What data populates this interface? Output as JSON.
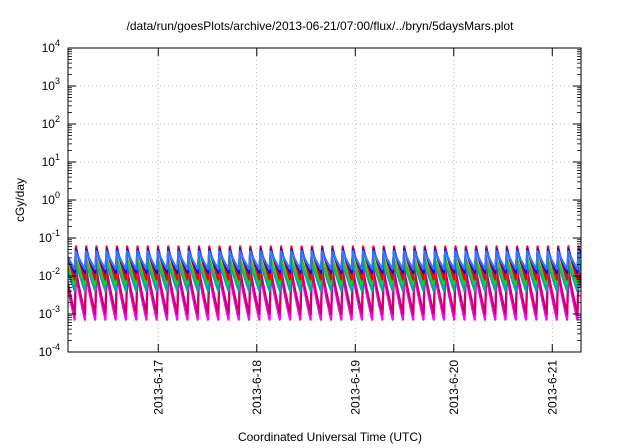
{
  "chart_data": {
    "type": "line",
    "title": "/data/run/goesPlots/archive/2013-06-21/07:00/flux/../bryn/5daysMars.plot",
    "xlabel": "Coordinated Universal Time (UTC)",
    "ylabel": "cGy/day",
    "y_scale": "log",
    "ylim": [
      0.0001,
      10000
    ],
    "xlim": [
      "2013-06-16 02:00",
      "2013-06-21 07:00"
    ],
    "grid": true,
    "legend": "none",
    "y_ticks": [
      {
        "mantissa": "10",
        "exp": "-4"
      },
      {
        "mantissa": "10",
        "exp": "-3"
      },
      {
        "mantissa": "10",
        "exp": "-2"
      },
      {
        "mantissa": "10",
        "exp": "-1"
      },
      {
        "mantissa": "10",
        "exp": "0"
      },
      {
        "mantissa": "10",
        "exp": "1"
      },
      {
        "mantissa": "10",
        "exp": "2"
      },
      {
        "mantissa": "10",
        "exp": "3"
      },
      {
        "mantissa": "10",
        "exp": "4"
      }
    ],
    "x_ticks": [
      "2013-6-17",
      "2013-6-18",
      "2013-6-19",
      "2013-6-20",
      "2013-6-21"
    ],
    "cycle_period_hours": 2.5,
    "series": [
      {
        "color": "#ff00ff",
        "peak": 0.012,
        "trough": 0.0007
      },
      {
        "color": "#cc0066",
        "peak": 0.016,
        "trough": 0.001
      },
      {
        "color": "#00aaaa",
        "peak": 0.025,
        "trough": 0.004
      },
      {
        "color": "#22cc22",
        "peak": 0.03,
        "trough": 0.006
      },
      {
        "color": "#ff0000",
        "peak": 0.06,
        "trough": 0.008
      },
      {
        "color": "#0000ff",
        "peak": 0.05,
        "trough": 0.012
      },
      {
        "color": "#3377ff",
        "peak": 0.045,
        "trough": 0.015
      }
    ]
  }
}
